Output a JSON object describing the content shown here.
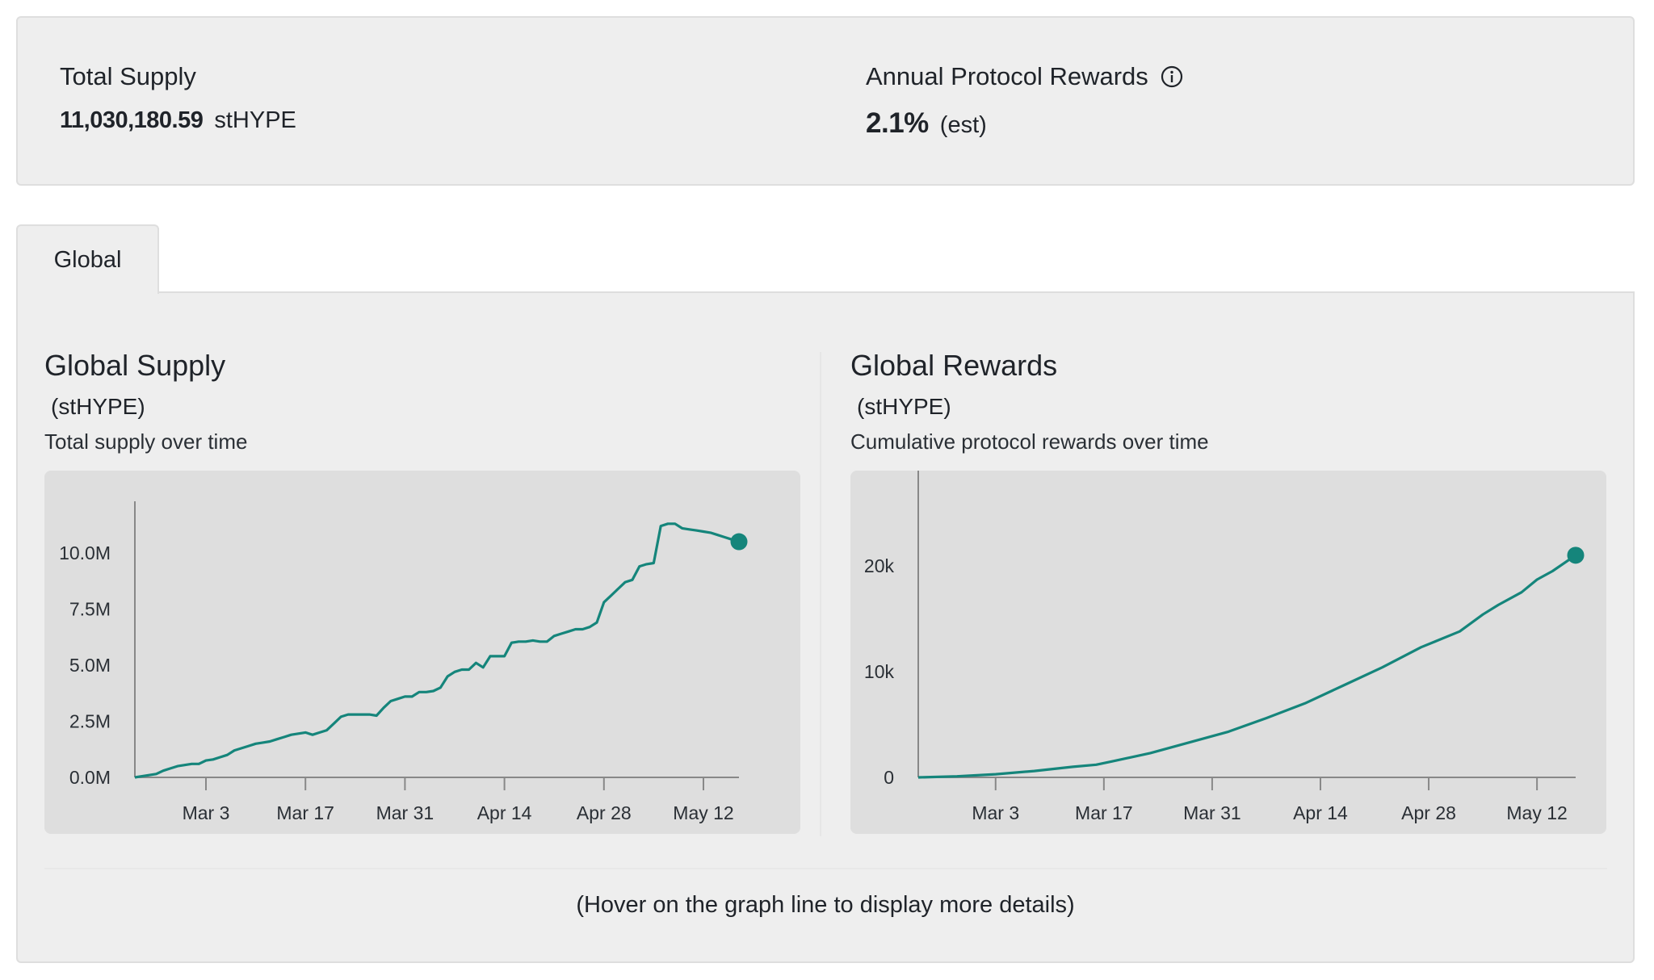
{
  "summary": {
    "total_supply": {
      "label": "Total Supply",
      "value": "11,030,180.59",
      "unit": "stHYPE"
    },
    "annual_rewards": {
      "label": "Annual Protocol Rewards",
      "value": "2.1%",
      "unit": "(est)"
    }
  },
  "tabs": [
    {
      "label": "Global",
      "active": true
    }
  ],
  "charts": {
    "supply": {
      "title": "Global Supply",
      "unit": "(stHYPE)",
      "subtitle": "Total supply over time"
    },
    "rewards": {
      "title": "Global Rewards",
      "unit": "(stHYPE)",
      "subtitle": "Cumulative protocol rewards over time"
    }
  },
  "hint": "(Hover on the graph line to display more details)",
  "colors": {
    "accent": "#15857b",
    "panel": "#eeeeee",
    "chart_bg": "#dedede",
    "axis": "#888888"
  },
  "icons": {
    "info": "info-circle-icon"
  },
  "chart_data": [
    {
      "type": "line",
      "title": "Global Supply",
      "x_tick_labels": [
        "Mar 3",
        "Mar 17",
        "Mar 31",
        "Apr 14",
        "Apr 28",
        "May 12"
      ],
      "x_tick_days": [
        15,
        29,
        43,
        57,
        71,
        85
      ],
      "x_range_days": [
        5,
        90
      ],
      "y_tick_labels": [
        "0.0M",
        "2.5M",
        "5.0M",
        "7.5M",
        "10.0M"
      ],
      "y_ticks": [
        0,
        2.5,
        5,
        7.5,
        10
      ],
      "ylim": [
        0,
        12.3
      ],
      "grid": false,
      "legend": "none",
      "series": [
        {
          "x": [
            5,
            6,
            7,
            8,
            9,
            10,
            11,
            12,
            13,
            14,
            15,
            16,
            17,
            18,
            19,
            20,
            21,
            22,
            23,
            24,
            25,
            26,
            27,
            28,
            29,
            30,
            31,
            32,
            33,
            34,
            35,
            36,
            37,
            38,
            39,
            40,
            41,
            42,
            43,
            44,
            45,
            46,
            47,
            48,
            49,
            50,
            51,
            52,
            53,
            54,
            55,
            56,
            57,
            58,
            59,
            60,
            61,
            62,
            63,
            64,
            65,
            66,
            67,
            68,
            69,
            70,
            71,
            72,
            73,
            74,
            75,
            76,
            77,
            78,
            79,
            80,
            81,
            82,
            83,
            84,
            85,
            86,
            87,
            88,
            89,
            90
          ],
          "y": [
            0.0,
            0.05,
            0.1,
            0.15,
            0.3,
            0.4,
            0.5,
            0.55,
            0.6,
            0.6,
            0.75,
            0.8,
            0.9,
            1.0,
            1.2,
            1.3,
            1.4,
            1.5,
            1.55,
            1.6,
            1.7,
            1.8,
            1.9,
            1.95,
            2.0,
            1.9,
            2.0,
            2.1,
            2.4,
            2.7,
            2.8,
            2.8,
            2.8,
            2.8,
            2.75,
            3.1,
            3.4,
            3.5,
            3.6,
            3.6,
            3.8,
            3.8,
            3.85,
            4.0,
            4.5,
            4.7,
            4.8,
            4.8,
            5.1,
            4.9,
            5.4,
            5.4,
            5.4,
            6.0,
            6.05,
            6.05,
            6.1,
            6.05,
            6.05,
            6.3,
            6.4,
            6.5,
            6.6,
            6.6,
            6.7,
            6.9,
            7.8,
            8.1,
            8.4,
            8.7,
            8.8,
            9.4,
            9.5,
            9.55,
            11.2,
            11.3,
            11.3,
            11.1,
            11.05,
            11.0,
            10.95,
            10.9,
            10.8,
            10.7,
            10.6,
            10.5
          ]
        }
      ]
    },
    {
      "type": "line",
      "title": "Global Rewards",
      "x_tick_labels": [
        "Mar 3",
        "Mar 17",
        "Mar 31",
        "Apr 14",
        "Apr 28",
        "May 12"
      ],
      "x_tick_days": [
        15,
        29,
        43,
        57,
        71,
        85
      ],
      "x_range_days": [
        5,
        90
      ],
      "y_tick_labels": [
        "0",
        "10k",
        "20k"
      ],
      "y_ticks": [
        0,
        10000,
        20000
      ],
      "ylim": [
        0,
        29000
      ],
      "grid": false,
      "legend": "none",
      "series": [
        {
          "x": [
            5,
            10,
            15,
            20,
            25,
            28,
            30,
            35,
            40,
            45,
            50,
            55,
            60,
            65,
            70,
            72,
            75,
            78,
            80,
            83,
            85,
            87,
            90
          ],
          "y": [
            0,
            100,
            300,
            600,
            1000,
            1200,
            1500,
            2300,
            3300,
            4300,
            5600,
            7000,
            8700,
            10400,
            12300,
            12900,
            13800,
            15400,
            16300,
            17500,
            18700,
            19500,
            21000
          ]
        }
      ]
    }
  ]
}
